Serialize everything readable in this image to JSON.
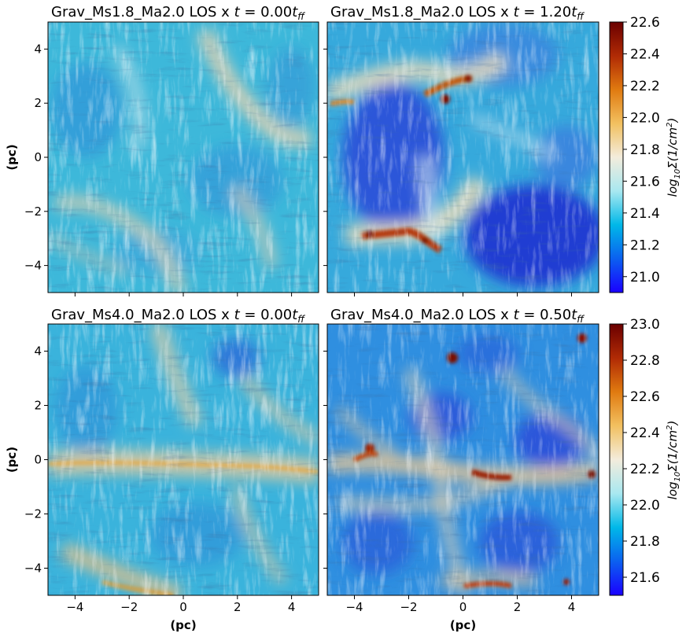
{
  "chart_data": [
    {
      "type": "heatmap",
      "title_prefix": "Grav_Ms1.8_Ma2.0 LOS x ",
      "time_label": "t = 0.00t_ff",
      "time_value": "0.00",
      "time_unit": "ff",
      "xlabel": "",
      "ylabel": "(pc)",
      "xlim": [
        -5,
        5
      ],
      "ylim": [
        -5,
        5
      ],
      "xticks": [
        -4,
        -2,
        0,
        2,
        4
      ],
      "yticks": [
        -4,
        -2,
        0,
        2,
        4
      ],
      "value_range": [
        21.3,
        21.9
      ],
      "description_colors": "mostly cyan with light-tan filaments"
    },
    {
      "type": "heatmap",
      "title_prefix": "Grav_Ms1.8_Ma2.0 LOS x ",
      "time_label": "t = 1.20t_ff",
      "time_value": "1.20",
      "time_unit": "ff",
      "xlabel": "",
      "ylabel": "",
      "xlim": [
        -5,
        5
      ],
      "ylim": [
        -5,
        5
      ],
      "xticks": [
        -4,
        -2,
        0,
        2,
        4
      ],
      "yticks": [
        -4,
        -2,
        0,
        2,
        4
      ],
      "value_range": [
        20.9,
        22.6
      ],
      "colorbar": {
        "label": "log10 Σ(1/cm²)",
        "label_main": "log",
        "label_sub": "10",
        "label_rest": "Σ(1/cm",
        "label_sup": "2",
        "label_end": ")",
        "min": 20.9,
        "max": 22.6,
        "ticks": [
          "21.0",
          "21.2",
          "21.4",
          "21.6",
          "21.8",
          "22.0",
          "22.2",
          "22.4",
          "22.6"
        ],
        "tick_values": [
          21.0,
          21.2,
          21.4,
          21.6,
          21.8,
          22.0,
          22.2,
          22.4,
          22.6
        ]
      }
    },
    {
      "type": "heatmap",
      "title_prefix": "Grav_Ms4.0_Ma2.0 LOS x ",
      "time_label": "t = 0.00t_ff",
      "time_value": "0.00",
      "time_unit": "ff",
      "xlabel": "(pc)",
      "ylabel": "(pc)",
      "xlim": [
        -5,
        5
      ],
      "ylim": [
        -5,
        5
      ],
      "xticks": [
        -4,
        -2,
        0,
        2,
        4
      ],
      "yticks": [
        -4,
        -2,
        0,
        2,
        4
      ],
      "value_range": [
        21.9,
        22.5
      ]
    },
    {
      "type": "heatmap",
      "title_prefix": "Grav_Ms4.0_Ma2.0 LOS x ",
      "time_label": "t = 0.50t_ff",
      "time_value": "0.50",
      "time_unit": "ff",
      "xlabel": "(pc)",
      "ylabel": "",
      "xlim": [
        -5,
        5
      ],
      "ylim": [
        -5,
        5
      ],
      "xticks": [
        -4,
        -2,
        0,
        2,
        4
      ],
      "yticks": [
        -4,
        -2,
        0,
        2,
        4
      ],
      "value_range": [
        21.5,
        23.0
      ],
      "colorbar": {
        "label": "log10 Σ(1/cm²)",
        "label_main": "log",
        "label_sub": "10",
        "label_rest": "Σ(1/cm",
        "label_sup": "2",
        "label_end": ")",
        "min": 21.5,
        "max": 23.0,
        "ticks": [
          "21.6",
          "21.8",
          "22.0",
          "22.2",
          "22.4",
          "22.6",
          "22.8",
          "23.0"
        ],
        "tick_values": [
          21.6,
          21.8,
          22.0,
          22.2,
          22.4,
          22.6,
          22.8,
          23.0
        ]
      }
    }
  ],
  "colormap": [
    "#1a00ff",
    "#0b60f0",
    "#00b8e8",
    "#a8e8f0",
    "#f3ecdc",
    "#f2c060",
    "#e07a10",
    "#b02a05",
    "#6a0000"
  ]
}
